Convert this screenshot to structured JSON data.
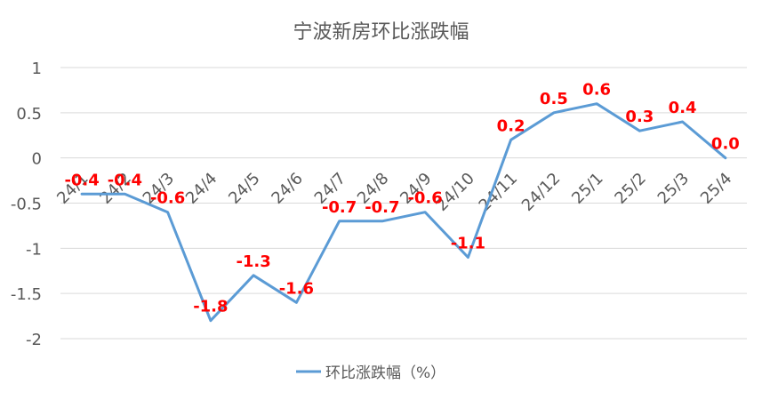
{
  "chart_data": {
    "type": "line",
    "title": "宁波新房环比涨跌幅",
    "categories": [
      "24/1",
      "24/2",
      "24/3",
      "24/4",
      "24/5",
      "24/6",
      "24/7",
      "24/8",
      "24/9",
      "24/10",
      "24/11",
      "24/12",
      "25/1",
      "25/2",
      "25/3",
      "25/4"
    ],
    "series": [
      {
        "name": "环比涨跌幅（%）",
        "values": [
          -0.4,
          -0.4,
          -0.6,
          -1.8,
          -1.3,
          -1.6,
          -0.7,
          -0.7,
          -0.6,
          -1.1,
          0.2,
          0.5,
          0.6,
          0.3,
          0.4,
          0.0
        ],
        "labels": [
          "-0.4",
          "-0.4",
          "-0.6",
          "-1.8",
          "-1.3",
          "-1.6",
          "-0.7",
          "-0.7",
          "-0.6",
          "-1.1",
          "0.2",
          "0.5",
          "0.6",
          "0.3",
          "0.4",
          "0.0"
        ]
      }
    ],
    "yticks": [
      "1",
      "0.5",
      "0",
      "-0.5",
      "-1",
      "-1.5",
      "-2"
    ],
    "ylim": [
      -2,
      1
    ],
    "grid": true,
    "legend": "bottom",
    "colors": {
      "line": "#5b9bd5",
      "label": "#ff0000",
      "grid": "#d9d9d9",
      "text": "#595959"
    }
  }
}
